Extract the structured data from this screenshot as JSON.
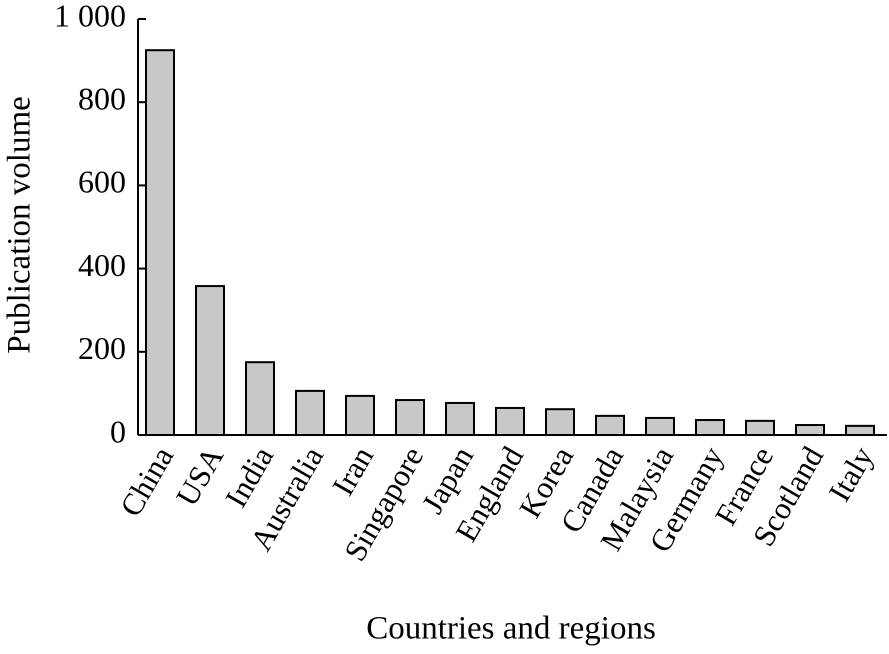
{
  "chart_data": {
    "type": "bar",
    "xlabel": "Countries and regions",
    "ylabel": "Publication volume",
    "categories": [
      "China",
      "USA",
      "India",
      "Australia",
      "Iran",
      "Singapore",
      "Japan",
      "England",
      "Korea",
      "Canada",
      "Malaysia",
      "Germany",
      "France",
      "Scotland",
      "Italy"
    ],
    "values": [
      925,
      358,
      175,
      106,
      94,
      84,
      77,
      65,
      62,
      46,
      41,
      36,
      34,
      24,
      22
    ],
    "color": "#c8c8c8",
    "ylim": [
      0,
      1000
    ],
    "yticks": [
      0,
      200,
      400,
      600,
      800,
      {
        "value": 1000,
        "label": "1 000"
      }
    ],
    "grid": false
  }
}
